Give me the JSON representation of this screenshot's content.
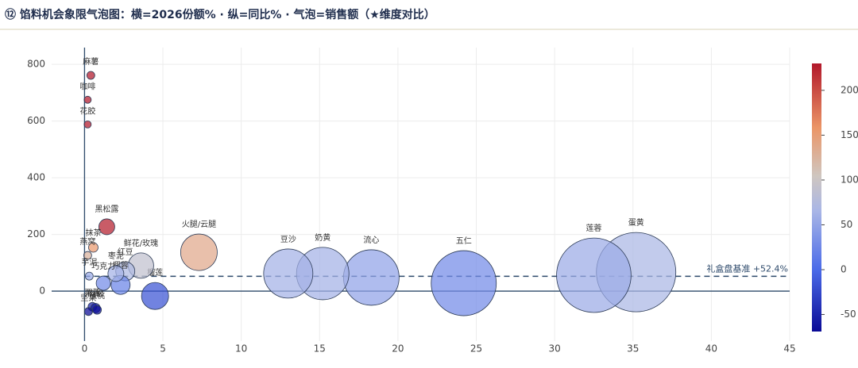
{
  "chart_data": {
    "type": "bubble",
    "title": "⑫ 馅料机会象限气泡图：横=2026份额% · 纵=同比% · 气泡=销售额（★维度对比）",
    "points": [
      {
        "name": "蛋黄",
        "x": 35.2,
        "y": 67,
        "size": 2500
      },
      {
        "name": "莲蓉",
        "x": 32.5,
        "y": 56,
        "size": 2200
      },
      {
        "name": "五仁",
        "x": 24.2,
        "y": 28,
        "size": 1680
      },
      {
        "name": "流心",
        "x": 18.3,
        "y": 48,
        "size": 1225
      },
      {
        "name": "奶黄",
        "x": 15.2,
        "y": 62,
        "size": 1090
      },
      {
        "name": "豆沙",
        "x": 13.0,
        "y": 62,
        "size": 960
      },
      {
        "name": "火腿/云腿",
        "x": 7.3,
        "y": 137,
        "size": 530
      },
      {
        "name": "榴莲",
        "x": 4.5,
        "y": -17,
        "size": 290
      },
      {
        "name": "鲜花/玫瑰",
        "x": 3.6,
        "y": 90,
        "size": 256
      },
      {
        "name": "红豆",
        "x": 2.6,
        "y": 70,
        "size": 144
      },
      {
        "name": "椰蓉",
        "x": 2.3,
        "y": 22,
        "size": 144
      },
      {
        "name": "枣泥",
        "x": 2.0,
        "y": 62,
        "size": 100
      },
      {
        "name": "黑松露",
        "x": 1.42,
        "y": 227,
        "size": 100
      },
      {
        "name": "巧克力",
        "x": 1.2,
        "y": 28,
        "size": 81
      },
      {
        "name": "抹茶",
        "x": 0.56,
        "y": 154,
        "size": 36
      },
      {
        "name": "燕窝",
        "x": 0.2,
        "y": 126,
        "size": 25
      },
      {
        "name": "芋泥",
        "x": 0.3,
        "y": 53,
        "size": 25
      },
      {
        "name": "麻薯",
        "x": 0.4,
        "y": 761,
        "size": 25
      },
      {
        "name": "咖啡",
        "x": 0.2,
        "y": 675,
        "size": 20
      },
      {
        "name": "花胶",
        "x": 0.2,
        "y": 588,
        "size": 20
      },
      {
        "name": "栗蓉",
        "x": 0.5,
        "y": -55,
        "size": 30
      },
      {
        "name": "肉松",
        "x": 0.7,
        "y": -60,
        "size": 36
      },
      {
        "name": "核桃",
        "x": 0.8,
        "y": -66,
        "size": 30
      },
      {
        "name": "坚果",
        "x": 0.25,
        "y": -72,
        "size": 25
      }
    ],
    "xlim": [
      -2.1,
      45
    ],
    "xticks": [
      0,
      5,
      10,
      15,
      20,
      25,
      30,
      35,
      40,
      45
    ],
    "ylim": [
      -176,
      859
    ],
    "yticks": [
      0,
      200,
      400,
      600,
      800
    ],
    "grid": true,
    "reference_line": {
      "value": 52.4,
      "label": "礼盒盘基准 +52.4%",
      "color": "#2e4a6b"
    },
    "colorbar": {
      "lim": [
        -69,
        230
      ],
      "ticks": [
        -50,
        0,
        50,
        100,
        150,
        200
      ],
      "colorscale": [
        [
          0,
          "#0a0a96"
        ],
        [
          0.23,
          "#4a6ae8"
        ],
        [
          0.45,
          "#a9b6e6"
        ],
        [
          0.58,
          "#cfc6c0"
        ],
        [
          0.76,
          "#eb9566"
        ],
        [
          1,
          "#b2182b"
        ]
      ]
    }
  }
}
